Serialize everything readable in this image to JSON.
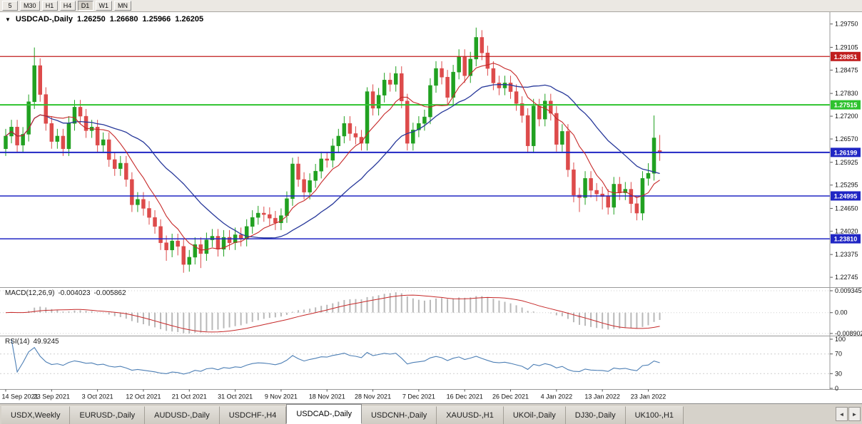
{
  "toolbar": {
    "periods": [
      {
        "label": "5",
        "active": false
      },
      {
        "label": "M30",
        "active": false
      },
      {
        "label": "H1",
        "active": false
      },
      {
        "label": "H4",
        "active": false
      },
      {
        "label": "D1",
        "active": true
      },
      {
        "label": "W1",
        "active": false
      },
      {
        "label": "MN",
        "active": false
      }
    ]
  },
  "header": {
    "symbol": "USDCAD-,Daily",
    "open": "1.26250",
    "high": "1.26680",
    "low": "1.25966",
    "close": "1.26205"
  },
  "indicators": {
    "macd_name": "MACD(12,26,9)",
    "macd_main": "-0.004023",
    "macd_signal": "-0.005862",
    "rsi_name": "RSI(14)",
    "rsi_value": "49.9245"
  },
  "tabs": {
    "items": [
      "USDX,Weekly",
      "EURUSD-,Daily",
      "AUDUSD-,Daily",
      "USDCHF-,H4",
      "USDCAD-,Daily",
      "USDCNH-,Daily",
      "XAUUSD-,H1",
      "UKOil-,Daily",
      "DJ30-,Daily",
      "UK100-,H1"
    ],
    "active": "USDCAD-,Daily"
  },
  "chart_data": {
    "type": "candlestick",
    "symbol": "USDCAD",
    "period": "Daily",
    "ylim": [
      1.2255,
      1.2998
    ],
    "price_ticks": [
      "1.29750",
      "1.29105",
      "1.28475",
      "1.27830",
      "1.27200",
      "1.26570",
      "1.25925",
      "1.25295",
      "1.24650",
      "1.24020",
      "1.23375",
      "1.22745"
    ],
    "levels": [
      {
        "value": 1.28851,
        "label": "1.28851",
        "color": "#c01d1d",
        "width": 1.2
      },
      {
        "value": 1.27515,
        "label": "1.27515",
        "color": "#2ec22e",
        "width": 2
      },
      {
        "value": 1.26199,
        "label": "1.26199",
        "color": "#2026c4",
        "width": 2
      },
      {
        "value": 1.24995,
        "label": "1.24995",
        "color": "#2026c4",
        "width": 1.5
      },
      {
        "value": 1.2381,
        "label": "1.23810",
        "color": "#2026c4",
        "width": 1.5
      }
    ],
    "date_ticks": [
      {
        "label": "14 Sep 2021",
        "index": 0
      },
      {
        "label": "23 Sep 2021",
        "index": 8
      },
      {
        "label": "3 Oct 2021",
        "index": 16
      },
      {
        "label": "12 Oct 2021",
        "index": 24
      },
      {
        "label": "21 Oct 2021",
        "index": 32
      },
      {
        "label": "31 Oct 2021",
        "index": 40
      },
      {
        "label": "9 Nov 2021",
        "index": 48
      },
      {
        "label": "18 Nov 2021",
        "index": 56
      },
      {
        "label": "28 Nov 2021",
        "index": 64
      },
      {
        "label": "7 Dec 2021",
        "index": 72
      },
      {
        "label": "16 Dec 2021",
        "index": 80
      },
      {
        "label": "26 Dec 2021",
        "index": 88
      },
      {
        "label": "4 Jan 2022",
        "index": 96
      },
      {
        "label": "13 Jan 2022",
        "index": 104
      },
      {
        "label": "23 Jan 2022",
        "index": 112
      }
    ],
    "ma": {
      "fast": {
        "period": 8,
        "color": "#c62828"
      },
      "slow": {
        "period": 21,
        "color": "#27389a"
      }
    },
    "macd": {
      "params": [
        12,
        26,
        9
      ],
      "ticks": [
        "0.009345",
        "0.00",
        "-0.008902"
      ],
      "hist_color": "#b9b9b9",
      "signal_color": "#c62828"
    },
    "rsi": {
      "period": 14,
      "ticks": [
        100,
        70,
        30,
        0
      ],
      "levels": [
        70,
        30
      ],
      "color": "#4d7fb5"
    },
    "colors": {
      "up": "#21a121",
      "down": "#dd4b4b",
      "grid": "#cfcfcf",
      "axis_text": "#111111",
      "separator": "#999999"
    },
    "candles": [
      [
        1.263,
        1.2685,
        1.261,
        1.2665
      ],
      [
        1.2665,
        1.271,
        1.2645,
        1.269
      ],
      [
        1.269,
        1.271,
        1.262,
        1.264
      ],
      [
        1.264,
        1.269,
        1.262,
        1.267
      ],
      [
        1.267,
        1.278,
        1.265,
        1.276
      ],
      [
        1.276,
        1.291,
        1.274,
        1.286
      ],
      [
        1.286,
        1.288,
        1.276,
        1.278
      ],
      [
        1.278,
        1.28,
        1.268,
        1.27
      ],
      [
        1.27,
        1.272,
        1.263,
        1.265
      ],
      [
        1.265,
        1.2685,
        1.263,
        1.2665
      ],
      [
        1.2665,
        1.2685,
        1.261,
        1.263
      ],
      [
        1.263,
        1.272,
        1.261,
        1.27
      ],
      [
        1.27,
        1.2765,
        1.268,
        1.2745
      ],
      [
        1.2745,
        1.2765,
        1.27,
        1.272
      ],
      [
        1.272,
        1.274,
        1.266,
        1.268
      ],
      [
        1.268,
        1.271,
        1.266,
        1.269
      ],
      [
        1.269,
        1.271,
        1.262,
        1.264
      ],
      [
        1.264,
        1.2675,
        1.262,
        1.2655
      ],
      [
        1.2655,
        1.2675,
        1.258,
        1.26
      ],
      [
        1.26,
        1.262,
        1.2555,
        1.2575
      ],
      [
        1.2575,
        1.261,
        1.2555,
        1.259
      ],
      [
        1.259,
        1.261,
        1.2525,
        1.2545
      ],
      [
        1.2545,
        1.2565,
        1.2455,
        1.2475
      ],
      [
        1.2475,
        1.251,
        1.2455,
        1.249
      ],
      [
        1.249,
        1.251,
        1.2445,
        1.2465
      ],
      [
        1.2465,
        1.2485,
        1.242,
        1.244
      ],
      [
        1.244,
        1.246,
        1.2395,
        1.2415
      ],
      [
        1.2415,
        1.2435,
        1.235,
        1.237
      ],
      [
        1.237,
        1.239,
        1.232,
        1.235
      ],
      [
        1.235,
        1.2395,
        1.233,
        1.2375
      ],
      [
        1.2375,
        1.2395,
        1.2335,
        1.236
      ],
      [
        1.236,
        1.238,
        1.2287,
        1.231
      ],
      [
        1.231,
        1.235,
        1.229,
        1.233
      ],
      [
        1.233,
        1.2385,
        1.231,
        1.2365
      ],
      [
        1.2365,
        1.2385,
        1.23,
        1.234
      ],
      [
        1.234,
        1.2398,
        1.232,
        1.2378
      ],
      [
        1.2378,
        1.2408,
        1.2358,
        1.2388
      ],
      [
        1.2388,
        1.2408,
        1.2332,
        1.2352
      ],
      [
        1.2352,
        1.2405,
        1.2332,
        1.2385
      ],
      [
        1.2385,
        1.2405,
        1.235,
        1.237
      ],
      [
        1.237,
        1.2412,
        1.235,
        1.2392
      ],
      [
        1.2392,
        1.2412,
        1.236,
        1.238
      ],
      [
        1.238,
        1.2435,
        1.236,
        1.2415
      ],
      [
        1.2415,
        1.246,
        1.2395,
        1.244
      ],
      [
        1.244,
        1.2472,
        1.242,
        1.2452
      ],
      [
        1.2452,
        1.247,
        1.2428,
        1.2448
      ],
      [
        1.2448,
        1.2468,
        1.2418,
        1.2438
      ],
      [
        1.2438,
        1.2458,
        1.2405,
        1.2425
      ],
      [
        1.2425,
        1.2465,
        1.2405,
        1.2445
      ],
      [
        1.2445,
        1.2512,
        1.2425,
        1.2492
      ],
      [
        1.2492,
        1.2605,
        1.2472,
        1.2588
      ],
      [
        1.2588,
        1.2608,
        1.2525,
        1.2545
      ],
      [
        1.2545,
        1.2565,
        1.249,
        1.251
      ],
      [
        1.251,
        1.2562,
        1.249,
        1.2542
      ],
      [
        1.2542,
        1.2588,
        1.2522,
        1.2568
      ],
      [
        1.2568,
        1.2622,
        1.2548,
        1.2602
      ],
      [
        1.2602,
        1.262,
        1.2578,
        1.2598
      ],
      [
        1.2598,
        1.2658,
        1.2578,
        1.2638
      ],
      [
        1.2638,
        1.2685,
        1.2618,
        1.2665
      ],
      [
        1.2665,
        1.272,
        1.2645,
        1.27
      ],
      [
        1.27,
        1.272,
        1.2652,
        1.2672
      ],
      [
        1.2672,
        1.2692,
        1.2642,
        1.2662
      ],
      [
        1.2662,
        1.2682,
        1.2625,
        1.2645
      ],
      [
        1.2645,
        1.28,
        1.2625,
        1.2788
      ],
      [
        1.2788,
        1.2808,
        1.2722,
        1.2742
      ],
      [
        1.2742,
        1.2798,
        1.2722,
        1.2778
      ],
      [
        1.2778,
        1.284,
        1.2758,
        1.282
      ],
      [
        1.282,
        1.284,
        1.2788,
        1.2808
      ],
      [
        1.2808,
        1.2858,
        1.2788,
        1.2838
      ],
      [
        1.2838,
        1.2858,
        1.2742,
        1.2762
      ],
      [
        1.2762,
        1.2782,
        1.2625,
        1.2645
      ],
      [
        1.2645,
        1.2702,
        1.2625,
        1.2682
      ],
      [
        1.2682,
        1.272,
        1.2662,
        1.27
      ],
      [
        1.27,
        1.2738,
        1.268,
        1.2718
      ],
      [
        1.2718,
        1.2825,
        1.2698,
        1.2805
      ],
      [
        1.2805,
        1.2872,
        1.2785,
        1.2852
      ],
      [
        1.2852,
        1.2872,
        1.2808,
        1.2828
      ],
      [
        1.2828,
        1.2848,
        1.2752,
        1.2772
      ],
      [
        1.2772,
        1.2862,
        1.2752,
        1.2842
      ],
      [
        1.2842,
        1.2905,
        1.2822,
        1.2885
      ],
      [
        1.2885,
        1.2905,
        1.2812,
        1.2832
      ],
      [
        1.2832,
        1.2898,
        1.2812,
        1.2878
      ],
      [
        1.2878,
        1.2965,
        1.2858,
        1.2938
      ],
      [
        1.2938,
        1.2958,
        1.2875,
        1.2895
      ],
      [
        1.2895,
        1.2915,
        1.2832,
        1.2852
      ],
      [
        1.2852,
        1.2872,
        1.2792,
        1.2812
      ],
      [
        1.2812,
        1.2832,
        1.2778,
        1.2798
      ],
      [
        1.2798,
        1.2832,
        1.2778,
        1.2812
      ],
      [
        1.2812,
        1.2832,
        1.2768,
        1.2788
      ],
      [
        1.2788,
        1.2808,
        1.2735,
        1.2755
      ],
      [
        1.2755,
        1.2775,
        1.2702,
        1.2722
      ],
      [
        1.2722,
        1.2742,
        1.2618,
        1.2638
      ],
      [
        1.2638,
        1.2768,
        1.2618,
        1.2748
      ],
      [
        1.2748,
        1.2768,
        1.2692,
        1.2712
      ],
      [
        1.2712,
        1.2782,
        1.2692,
        1.2762
      ],
      [
        1.2762,
        1.2782,
        1.2708,
        1.2728
      ],
      [
        1.2728,
        1.2748,
        1.2622,
        1.2642
      ],
      [
        1.2642,
        1.2698,
        1.2622,
        1.2678
      ],
      [
        1.2678,
        1.2698,
        1.2552,
        1.2572
      ],
      [
        1.2572,
        1.2592,
        1.2482,
        1.2502
      ],
      [
        1.2502,
        1.2522,
        1.2455,
        1.2495
      ],
      [
        1.2495,
        1.2568,
        1.2475,
        1.2548
      ],
      [
        1.2548,
        1.2568,
        1.2495,
        1.2515
      ],
      [
        1.2515,
        1.2535,
        1.2485,
        1.2505
      ],
      [
        1.2505,
        1.2525,
        1.2462,
        1.2498
      ],
      [
        1.2498,
        1.2518,
        1.2448,
        1.2468
      ],
      [
        1.2468,
        1.2552,
        1.2448,
        1.2532
      ],
      [
        1.2532,
        1.2552,
        1.2488,
        1.2508
      ],
      [
        1.2508,
        1.2538,
        1.2488,
        1.2518
      ],
      [
        1.2518,
        1.2538,
        1.2452,
        1.2478
      ],
      [
        1.2478,
        1.2498,
        1.2432,
        1.2452
      ],
      [
        1.2452,
        1.2568,
        1.2432,
        1.2548
      ],
      [
        1.2548,
        1.259,
        1.2528,
        1.2562
      ],
      [
        1.2562,
        1.2722,
        1.2542,
        1.266
      ],
      [
        1.2625,
        1.2668,
        1.25966,
        1.26205
      ]
    ]
  }
}
